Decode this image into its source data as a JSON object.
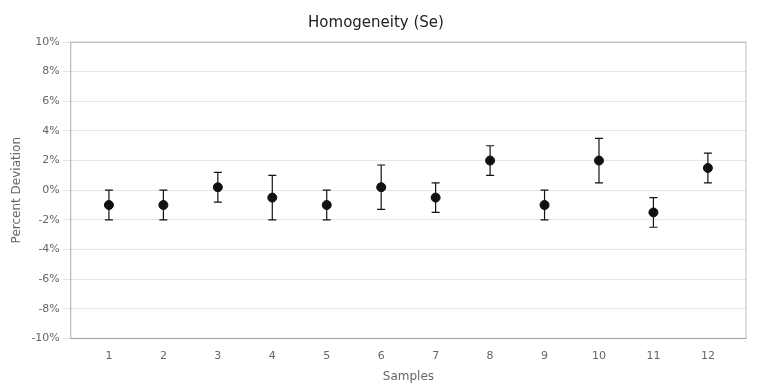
{
  "chart_data": {
    "type": "scatter",
    "title": "Homogeneity (Se)",
    "xlabel": "Samples",
    "ylabel": "Percent Deviation",
    "x": [
      1,
      2,
      3,
      4,
      5,
      6,
      7,
      8,
      9,
      10,
      11,
      12
    ],
    "values": [
      -1.0,
      -1.0,
      0.2,
      -0.5,
      -1.0,
      0.2,
      -0.5,
      2.0,
      -1.0,
      2.0,
      -1.5,
      1.5
    ],
    "errors": [
      1.0,
      1.0,
      1.0,
      1.5,
      1.0,
      1.5,
      1.0,
      1.0,
      1.0,
      1.5,
      1.0,
      1.0
    ],
    "color": "#111111",
    "marker": "circle",
    "xlim": [
      0.3,
      12.7
    ],
    "xticks": [
      1,
      2,
      3,
      4,
      5,
      6,
      7,
      8,
      9,
      10,
      11,
      12
    ],
    "ylim": [
      -10,
      10
    ],
    "yticks": [
      {
        "value": -10,
        "label": "-10%"
      },
      {
        "value": -8,
        "label": "-8%"
      },
      {
        "value": -6,
        "label": "-6%"
      },
      {
        "value": -4,
        "label": "-4%"
      },
      {
        "value": -2,
        "label": "-2%"
      },
      {
        "value": 0,
        "label": "0%"
      },
      {
        "value": 2,
        "label": "2%"
      },
      {
        "value": 4,
        "label": "4%"
      },
      {
        "value": 6,
        "label": "6%"
      },
      {
        "value": 8,
        "label": "8%"
      },
      {
        "value": 10,
        "label": "10%"
      }
    ],
    "grid": "y"
  }
}
